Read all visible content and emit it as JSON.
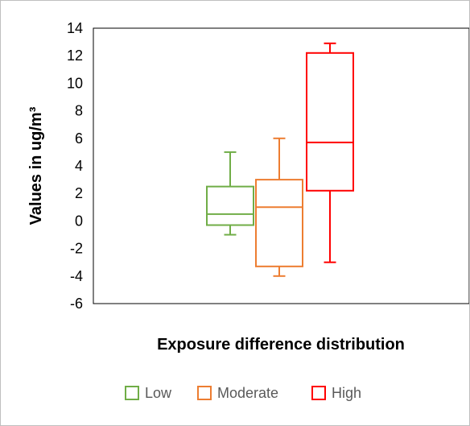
{
  "chart_data": {
    "type": "box",
    "title": "",
    "xlabel": "Exposure difference distribution",
    "ylabel": "Values in ug/m³",
    "ylim": [
      -6,
      14
    ],
    "yticks": [
      14,
      12,
      10,
      8,
      6,
      4,
      2,
      0,
      -2,
      -4,
      -6
    ],
    "grid": false,
    "legend_position": "bottom",
    "series": [
      {
        "name": "Low",
        "color": "#70ad47",
        "min": -1,
        "q1": -0.3,
        "median": 0.5,
        "q3": 2.5,
        "max": 5
      },
      {
        "name": "Moderate",
        "color": "#ed7d31",
        "min": -4,
        "q1": -3.3,
        "median": 1,
        "q3": 3,
        "max": 6
      },
      {
        "name": "High",
        "color": "#ff0000",
        "min": -3,
        "q1": 2.2,
        "median": 5.7,
        "q3": 12.2,
        "max": 12.9
      }
    ]
  }
}
